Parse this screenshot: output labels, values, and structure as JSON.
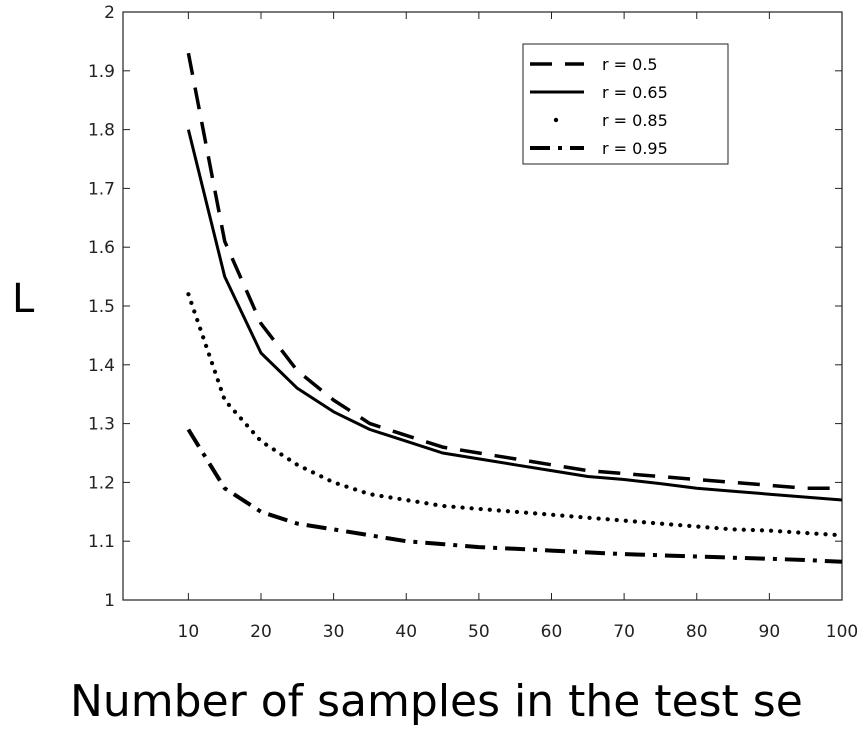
{
  "chart_data": {
    "type": "line",
    "title": "",
    "xlabel": "Number of samples in the test se",
    "ylabel": "L",
    "xlim": [
      1,
      100
    ],
    "ylim": [
      1,
      2
    ],
    "xticks": [
      10,
      20,
      30,
      40,
      50,
      60,
      70,
      80,
      90,
      100
    ],
    "xtick_labels": [
      "10",
      "20",
      "30",
      "40",
      "50",
      "60",
      "70",
      "80",
      "90",
      "100"
    ],
    "yticks": [
      1,
      1.1,
      1.2,
      1.3,
      1.4,
      1.5,
      1.6,
      1.7,
      1.8,
      1.9,
      2
    ],
    "ytick_labels": [
      "1",
      "1.1",
      "1.2",
      "1.3",
      "1.4",
      "1.5",
      "1.6",
      "1.7",
      "1.8",
      "1.9",
      "2"
    ],
    "legend_position": "top-right",
    "grid": false,
    "series": [
      {
        "name": "r = 0.5",
        "style": "dashed",
        "x": [
          10,
          15,
          20,
          25,
          30,
          35,
          40,
          45,
          50,
          55,
          60,
          65,
          70,
          75,
          80,
          85,
          90,
          95,
          100
        ],
        "y": [
          1.93,
          1.61,
          1.47,
          1.39,
          1.34,
          1.3,
          1.28,
          1.26,
          1.25,
          1.24,
          1.23,
          1.22,
          1.215,
          1.21,
          1.205,
          1.2,
          1.195,
          1.19,
          1.19
        ]
      },
      {
        "name": "r = 0.65",
        "style": "solid",
        "x": [
          10,
          15,
          20,
          25,
          30,
          35,
          40,
          45,
          50,
          55,
          60,
          65,
          70,
          75,
          80,
          85,
          90,
          95,
          100
        ],
        "y": [
          1.8,
          1.55,
          1.42,
          1.36,
          1.32,
          1.29,
          1.27,
          1.25,
          1.24,
          1.23,
          1.22,
          1.21,
          1.205,
          1.198,
          1.19,
          1.185,
          1.18,
          1.175,
          1.17
        ]
      },
      {
        "name": "r = 0.85",
        "style": "dotted",
        "x": [
          10,
          15,
          20,
          25,
          30,
          35,
          40,
          45,
          50,
          55,
          60,
          65,
          70,
          75,
          80,
          85,
          90,
          95,
          100
        ],
        "y": [
          1.52,
          1.34,
          1.27,
          1.23,
          1.2,
          1.18,
          1.17,
          1.16,
          1.155,
          1.15,
          1.145,
          1.14,
          1.135,
          1.13,
          1.125,
          1.12,
          1.118,
          1.114,
          1.11
        ]
      },
      {
        "name": "r = 0.95",
        "style": "dashdot",
        "x": [
          10,
          15,
          20,
          25,
          30,
          35,
          40,
          45,
          50,
          55,
          60,
          65,
          70,
          75,
          80,
          85,
          90,
          95,
          100
        ],
        "y": [
          1.29,
          1.19,
          1.15,
          1.13,
          1.12,
          1.11,
          1.1,
          1.095,
          1.09,
          1.087,
          1.084,
          1.081,
          1.078,
          1.076,
          1.074,
          1.072,
          1.07,
          1.068,
          1.065
        ]
      }
    ]
  }
}
